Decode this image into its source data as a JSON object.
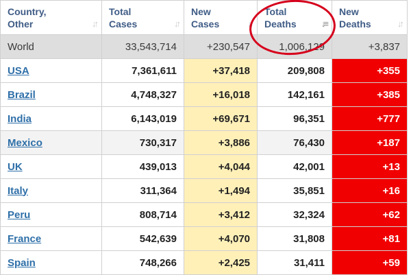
{
  "table": {
    "headers": [
      {
        "label": "Country,\nOther",
        "sort_icon": "sort-icon"
      },
      {
        "label": "Total\nCases",
        "sort_icon": "sort-icon"
      },
      {
        "label": "New\nCases",
        "sort_icon": "sort-icon"
      },
      {
        "label": "Total\nDeaths",
        "sort_icon": "sort-desc-icon"
      },
      {
        "label": "New\nDeaths",
        "sort_icon": "sort-icon"
      }
    ],
    "world": {
      "country": "World",
      "total_cases": "33,543,714",
      "new_cases": "+230,547",
      "total_deaths": "1,006,129",
      "new_deaths": "+3,837"
    },
    "rows": [
      {
        "country": "USA",
        "total_cases": "7,361,611",
        "new_cases": "+37,418",
        "total_deaths": "209,808",
        "new_deaths": "+355"
      },
      {
        "country": "Brazil",
        "total_cases": "4,748,327",
        "new_cases": "+16,018",
        "total_deaths": "142,161",
        "new_deaths": "+385"
      },
      {
        "country": "India",
        "total_cases": "6,143,019",
        "new_cases": "+69,671",
        "total_deaths": "96,351",
        "new_deaths": "+777"
      },
      {
        "country": "Mexico",
        "total_cases": "730,317",
        "new_cases": "+3,886",
        "total_deaths": "76,430",
        "new_deaths": "+187"
      },
      {
        "country": "UK",
        "total_cases": "439,013",
        "new_cases": "+4,044",
        "total_deaths": "42,001",
        "new_deaths": "+13"
      },
      {
        "country": "Italy",
        "total_cases": "311,364",
        "new_cases": "+1,494",
        "total_deaths": "35,851",
        "new_deaths": "+16"
      },
      {
        "country": "Peru",
        "total_cases": "808,714",
        "new_cases": "+3,412",
        "total_deaths": "32,324",
        "new_deaths": "+62"
      },
      {
        "country": "France",
        "total_cases": "542,639",
        "new_cases": "+4,070",
        "total_deaths": "31,808",
        "new_deaths": "+81"
      },
      {
        "country": "Spain",
        "total_cases": "748,266",
        "new_cases": "+2,425",
        "total_deaths": "31,411",
        "new_deaths": "+59"
      }
    ]
  },
  "colors": {
    "header_text": "#3f5c86",
    "link": "#2e6fa8",
    "new_cases_bg": "#fff0b8",
    "new_deaths_bg": "#f00000",
    "world_row_bg": "#dedede",
    "highlight_circle": "#d6001c"
  }
}
